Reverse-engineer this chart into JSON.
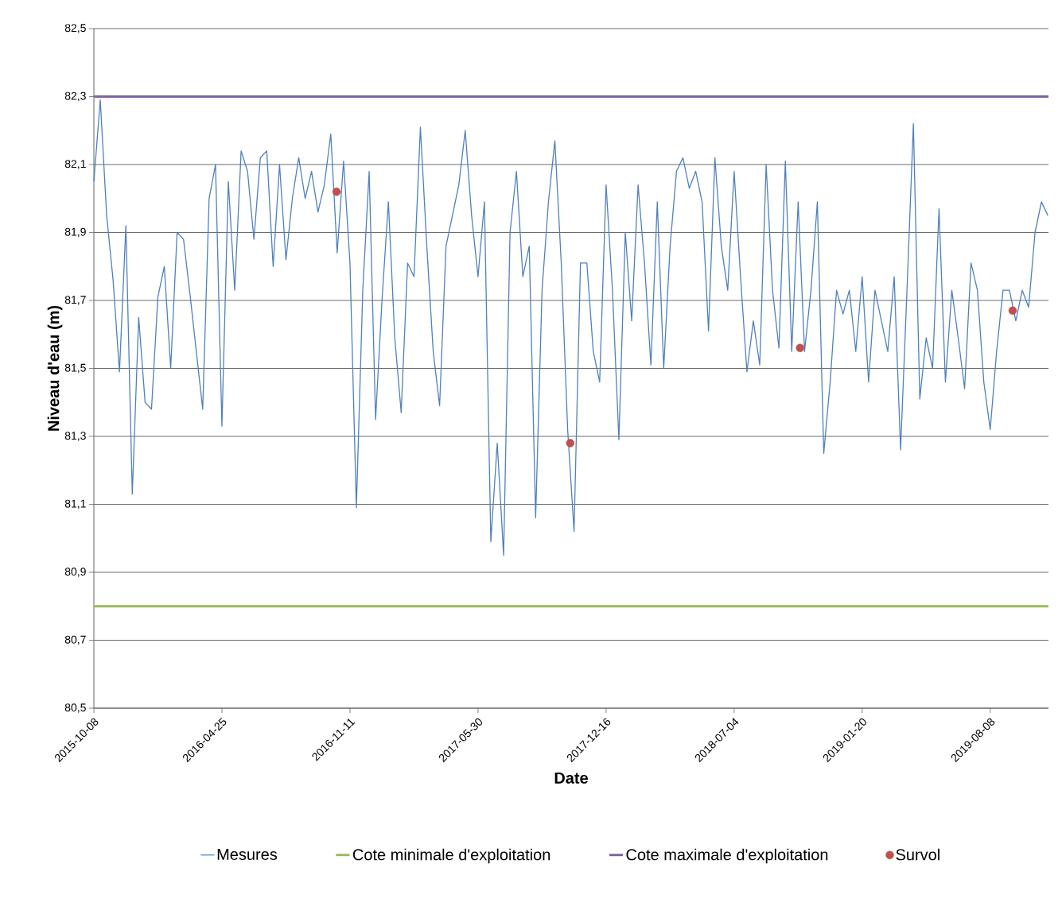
{
  "chart_data": {
    "type": "line",
    "xlabel": "Date",
    "ylabel": "Niveau d'eau (m)",
    "xlim": [
      "2015-10-08",
      "2019-11-07"
    ],
    "xticks": [
      "2015-10-08",
      "2016-04-25",
      "2016-11-11",
      "2017-05-30",
      "2017-12-16",
      "2018-07-04",
      "2019-01-20",
      "2019-08-08"
    ],
    "ylim": [
      80.5,
      82.5
    ],
    "yticks": [
      {
        "value": 80.5,
        "label": "80,5"
      },
      {
        "value": 80.7,
        "label": "80,7"
      },
      {
        "value": 80.9,
        "label": "80,9"
      },
      {
        "value": 81.1,
        "label": "81,1"
      },
      {
        "value": 81.3,
        "label": "81,3"
      },
      {
        "value": 81.5,
        "label": "81,5"
      },
      {
        "value": 81.7,
        "label": "81,7"
      },
      {
        "value": 81.9,
        "label": "81,9"
      },
      {
        "value": 82.1,
        "label": "82,1"
      },
      {
        "value": 82.3,
        "label": "82,3"
      },
      {
        "value": 82.5,
        "label": "82,5"
      }
    ],
    "grid": "y",
    "legend": "bottom",
    "marker": "none",
    "line_style": "solid",
    "series": [
      {
        "name": "Mesures",
        "color": "#4f81bd",
        "x": [
          "2015-10-08",
          "2015-10-18",
          "2015-10-28",
          "2015-11-07",
          "2015-11-17",
          "2015-11-27",
          "2015-12-07",
          "2015-12-17",
          "2015-12-27",
          "2016-01-06",
          "2016-01-16",
          "2016-01-26",
          "2016-02-05",
          "2016-02-15",
          "2016-02-25",
          "2016-03-06",
          "2016-03-16",
          "2016-03-26",
          "2016-04-05",
          "2016-04-15",
          "2016-04-25",
          "2016-05-05",
          "2016-05-15",
          "2016-05-25",
          "2016-06-04",
          "2016-06-14",
          "2016-06-24",
          "2016-07-04",
          "2016-07-14",
          "2016-07-24",
          "2016-08-03",
          "2016-08-13",
          "2016-08-23",
          "2016-09-02",
          "2016-09-12",
          "2016-09-22",
          "2016-10-02",
          "2016-10-12",
          "2016-10-22",
          "2016-11-01",
          "2016-11-11",
          "2016-11-21",
          "2016-12-01",
          "2016-12-11",
          "2016-12-21",
          "2016-12-31",
          "2017-01-10",
          "2017-01-20",
          "2017-01-30",
          "2017-02-09",
          "2017-02-19",
          "2017-03-01",
          "2017-03-11",
          "2017-03-21",
          "2017-03-31",
          "2017-04-10",
          "2017-04-20",
          "2017-04-30",
          "2017-05-10",
          "2017-05-20",
          "2017-05-30",
          "2017-06-09",
          "2017-06-19",
          "2017-06-29",
          "2017-07-09",
          "2017-07-19",
          "2017-07-29",
          "2017-08-08",
          "2017-08-18",
          "2017-08-28",
          "2017-09-07",
          "2017-09-17",
          "2017-09-27",
          "2017-10-07",
          "2017-10-17",
          "2017-10-27",
          "2017-11-06",
          "2017-11-16",
          "2017-11-26",
          "2017-12-06",
          "2017-12-16",
          "2017-12-26",
          "2018-01-05",
          "2018-01-15",
          "2018-01-25",
          "2018-02-04",
          "2018-02-14",
          "2018-02-24",
          "2018-03-06",
          "2018-03-16",
          "2018-03-26",
          "2018-04-05",
          "2018-04-15",
          "2018-04-25",
          "2018-05-05",
          "2018-05-15",
          "2018-05-25",
          "2018-06-04",
          "2018-06-14",
          "2018-06-24",
          "2018-07-04",
          "2018-07-14",
          "2018-07-24",
          "2018-08-03",
          "2018-08-13",
          "2018-08-23",
          "2018-09-02",
          "2018-09-12",
          "2018-09-22",
          "2018-10-02",
          "2018-10-12",
          "2018-10-22",
          "2018-11-01",
          "2018-11-11",
          "2018-11-21",
          "2018-12-01",
          "2018-12-11",
          "2018-12-21",
          "2018-12-31",
          "2019-01-10",
          "2019-01-20",
          "2019-01-30",
          "2019-02-09",
          "2019-02-19",
          "2019-03-01",
          "2019-03-11",
          "2019-03-21",
          "2019-03-31",
          "2019-04-10",
          "2019-04-20",
          "2019-04-30",
          "2019-05-10",
          "2019-05-20",
          "2019-05-30",
          "2019-06-09",
          "2019-06-19",
          "2019-06-29",
          "2019-07-09",
          "2019-07-19",
          "2019-07-29",
          "2019-08-08",
          "2019-08-18",
          "2019-08-28",
          "2019-09-07",
          "2019-09-17",
          "2019-09-27",
          "2019-10-07",
          "2019-10-17",
          "2019-10-27",
          "2019-11-06"
        ],
        "values": [
          82.05,
          82.29,
          81.95,
          81.76,
          81.49,
          81.92,
          81.13,
          81.65,
          81.4,
          81.38,
          81.71,
          81.8,
          81.5,
          81.9,
          81.88,
          81.72,
          81.55,
          81.38,
          82.0,
          82.1,
          81.33,
          82.05,
          81.73,
          82.14,
          82.08,
          81.88,
          82.12,
          82.14,
          81.8,
          82.1,
          81.82,
          82.0,
          82.12,
          82.0,
          82.08,
          81.96,
          82.04,
          82.19,
          81.84,
          82.11,
          81.81,
          81.09,
          81.73,
          82.08,
          81.35,
          81.7,
          81.99,
          81.59,
          81.37,
          81.81,
          81.77,
          82.21,
          81.86,
          81.55,
          81.39,
          81.86,
          81.95,
          82.04,
          82.2,
          81.95,
          81.77,
          81.99,
          80.99,
          81.28,
          80.95,
          81.9,
          82.08,
          81.77,
          81.86,
          81.06,
          81.73,
          81.99,
          82.17,
          81.81,
          81.32,
          81.02,
          81.81,
          81.81,
          81.55,
          81.46,
          82.04,
          81.73,
          81.29,
          81.9,
          81.64,
          82.04,
          81.81,
          81.51,
          81.99,
          81.5,
          81.86,
          82.08,
          82.12,
          82.03,
          82.08,
          81.99,
          81.61,
          82.12,
          81.86,
          81.73,
          82.08,
          81.77,
          81.49,
          81.64,
          81.51,
          82.1,
          81.73,
          81.56,
          82.11,
          81.55,
          81.99,
          81.55,
          81.73,
          81.99,
          81.25,
          81.46,
          81.73,
          81.66,
          81.73,
          81.55,
          81.77,
          81.46,
          81.73,
          81.64,
          81.55,
          81.77,
          81.26,
          81.73,
          82.22,
          81.41,
          81.59,
          81.5,
          81.97,
          81.46,
          81.73,
          81.59,
          81.44,
          81.81,
          81.73,
          81.46,
          81.32,
          81.55,
          81.73,
          81.73,
          81.64,
          81.73,
          81.68,
          81.9,
          81.99,
          81.95
        ]
      },
      {
        "name": "Cote minimale d'exploitation",
        "color": "#9bbb59",
        "x": [
          "2015-10-08",
          "2019-11-07"
        ],
        "values": [
          80.8,
          80.8
        ]
      },
      {
        "name": "Cote maximale d'exploitation",
        "color": "#8064a2",
        "x": [
          "2015-10-08",
          "2019-11-07"
        ],
        "values": [
          82.3,
          82.3
        ]
      },
      {
        "name": "Survol",
        "type": "scatter",
        "marker": "circle",
        "color": "#c0504d",
        "x": [
          "2016-10-21",
          "2017-10-21",
          "2018-10-15",
          "2019-09-12"
        ],
        "values": [
          82.02,
          81.28,
          81.56,
          81.67
        ]
      }
    ]
  }
}
